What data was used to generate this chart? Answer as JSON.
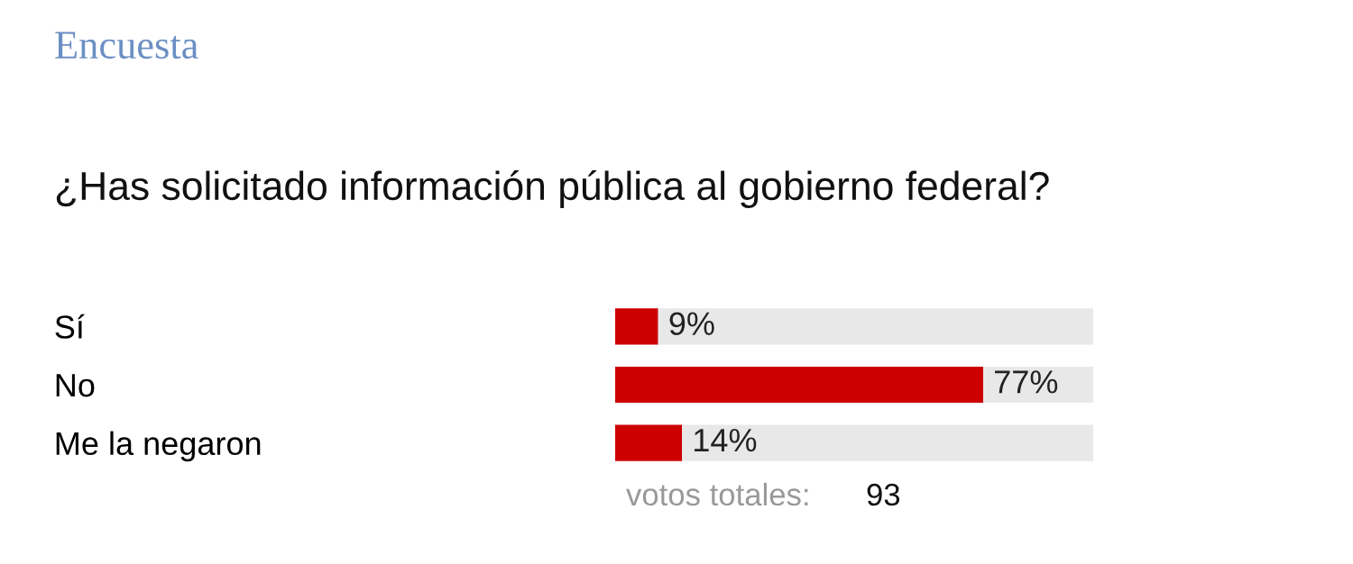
{
  "chart_data": {
    "type": "bar",
    "orientation": "horizontal",
    "stacked": true,
    "title": "Encuesta",
    "subtitle": "¿Has solicitado información pública al gobierno federal?",
    "categories": [
      "Sí",
      "No",
      "Me la negaron"
    ],
    "series": [
      {
        "color": "#cc0000",
        "values": [
          9,
          77,
          14
        ],
        "value_labels": [
          "9%",
          "77%",
          "14%"
        ]
      },
      {
        "color": "#e8e8e8",
        "values": [
          91,
          23,
          86
        ]
      }
    ],
    "xlim": [
      0,
      100
    ],
    "tick_labels": "y",
    "grid": false,
    "legend": false,
    "annotations": [
      "votos totales:",
      "93"
    ]
  }
}
